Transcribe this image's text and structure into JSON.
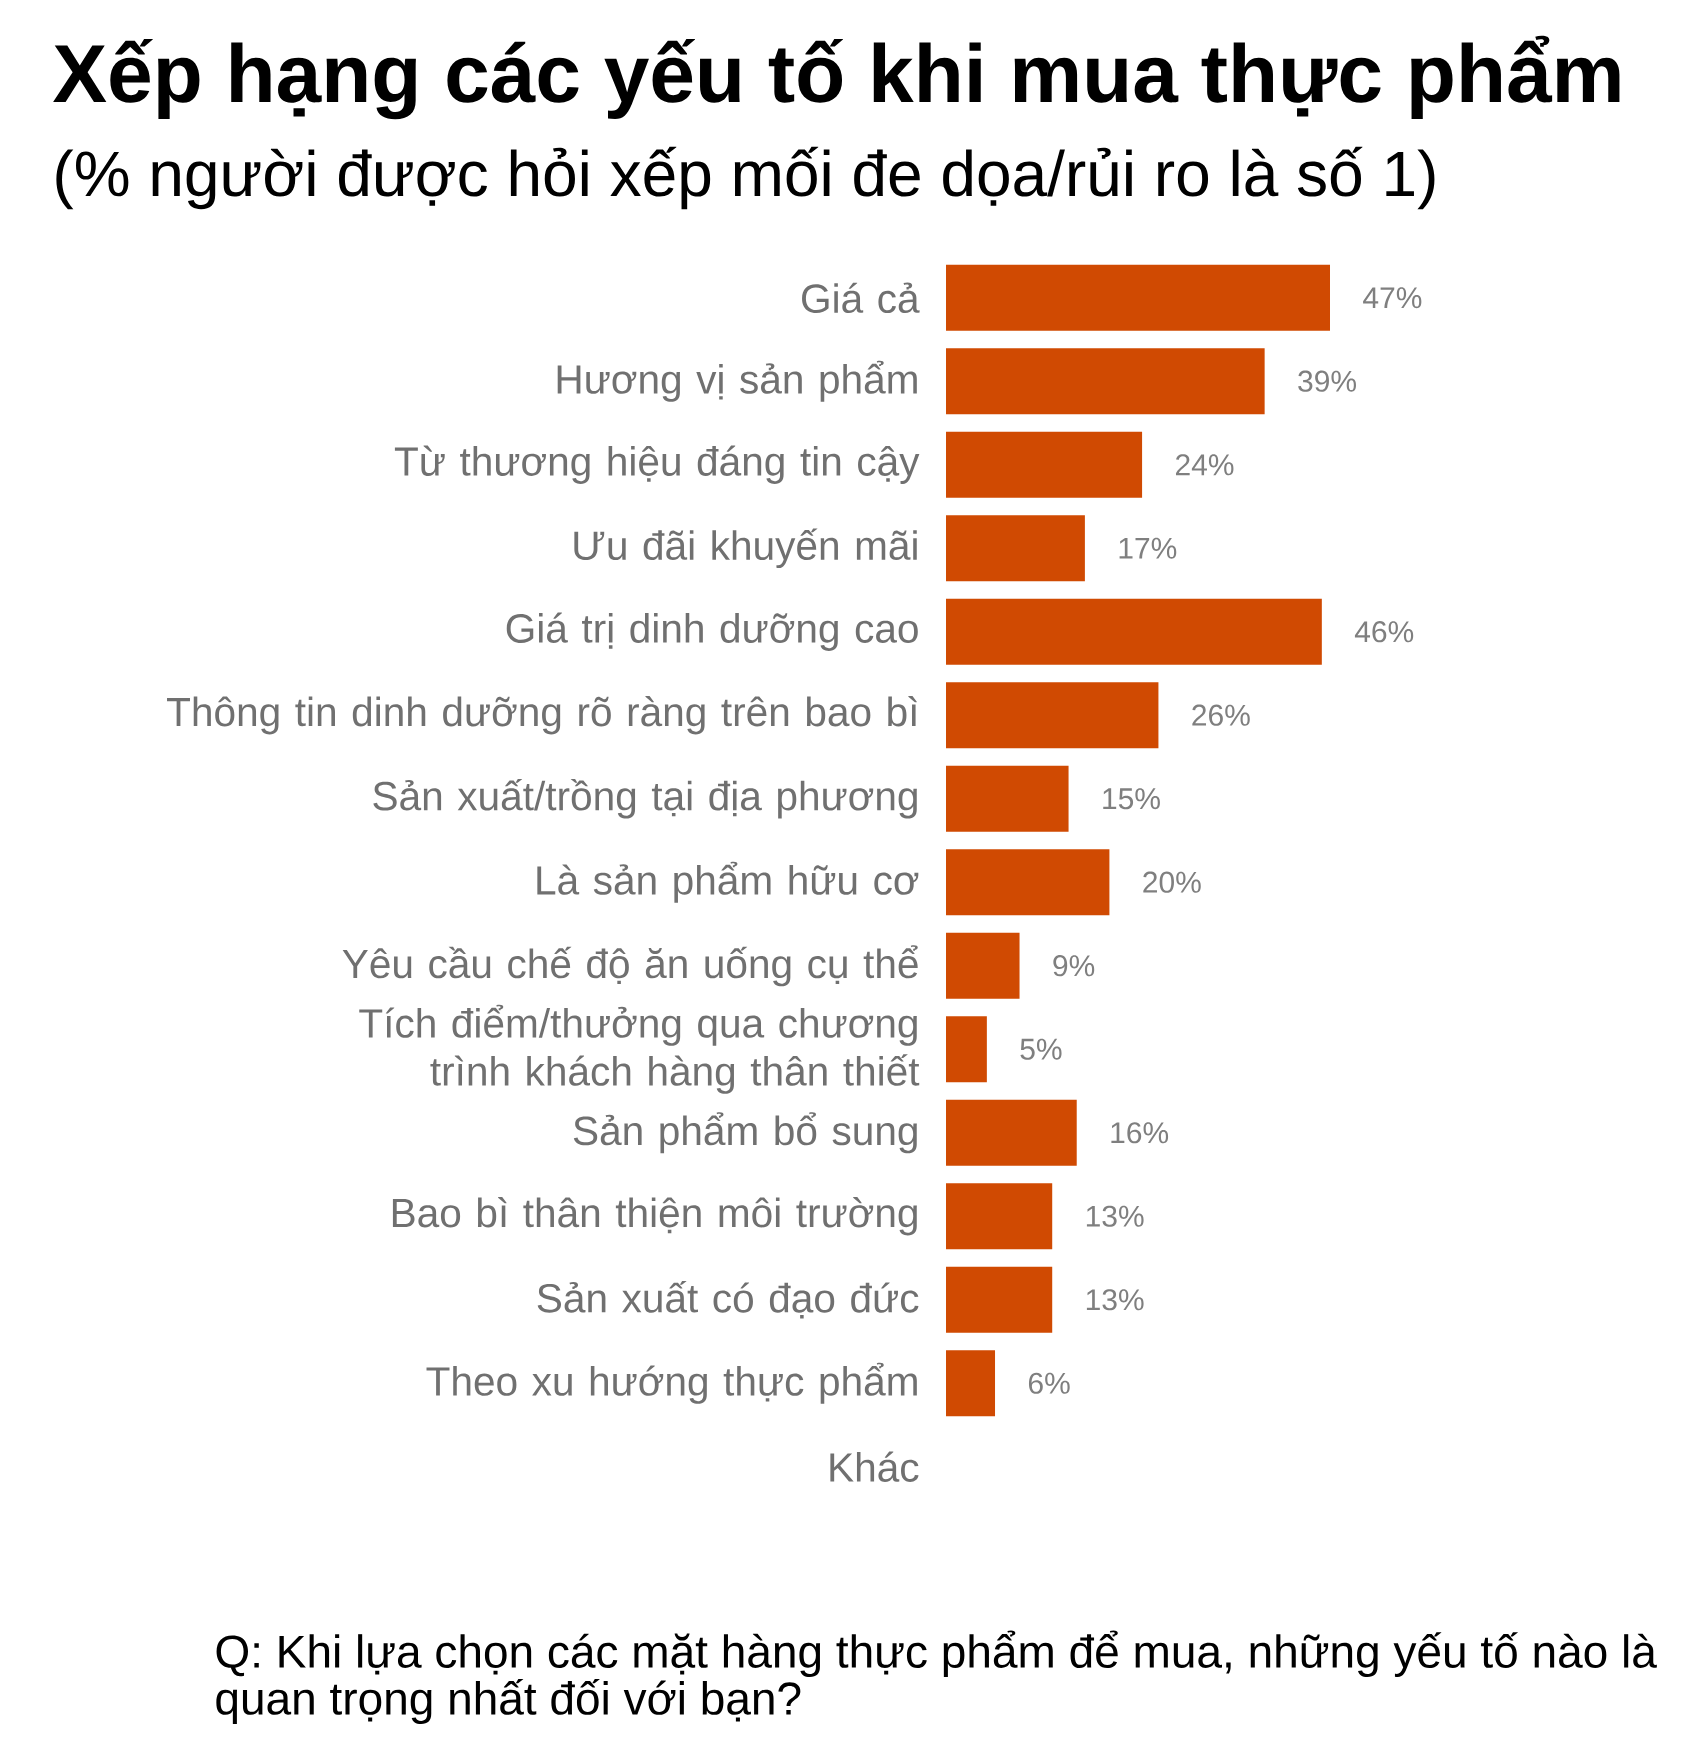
{
  "chart_data": {
    "type": "bar",
    "orientation": "horizontal",
    "title": "Xếp hạng các yếu tố khi mua thực phẩm",
    "subtitle": "(% người được hỏi xếp mối đe dọa/rủi ro là số 1)",
    "categories": [
      "Giá cả",
      "Hương vị sản phẩm",
      "Từ thương hiệu đáng tin cậy",
      "Ưu đãi khuyến mãi",
      "Giá trị dinh dưỡng cao",
      "Thông tin dinh dưỡng rõ ràng trên bao bì",
      "Sản xuất/trồng tại địa phương",
      "Là sản phẩm hữu cơ",
      "Yêu cầu chế độ ăn uống cụ thể",
      "Tích điểm/thưởng qua chương trình khách hàng thân thiết",
      "Sản phẩm bổ sung",
      "Bao bì thân thiện môi trường",
      "Sản xuất có đạo đức",
      "Theo xu hướng thực phẩm",
      "Khác"
    ],
    "values": [
      47,
      39,
      24,
      17,
      46,
      26,
      15,
      20,
      9,
      5,
      16,
      13,
      13,
      6,
      null
    ],
    "value_labels": [
      "47%",
      "39%",
      "24%",
      "17%",
      "46%",
      "26%",
      "15%",
      "20%",
      "9%",
      "5%",
      "16%",
      "13%",
      "13%",
      "6%",
      null
    ],
    "color": "#d04a02",
    "tick_labels": "y",
    "annotations": [
      "Q: Khi lựa chọn các mặt hàng thực phẩm để mua, những yếu tố nào là quan trọng nhất đối với bạn?"
    ]
  }
}
